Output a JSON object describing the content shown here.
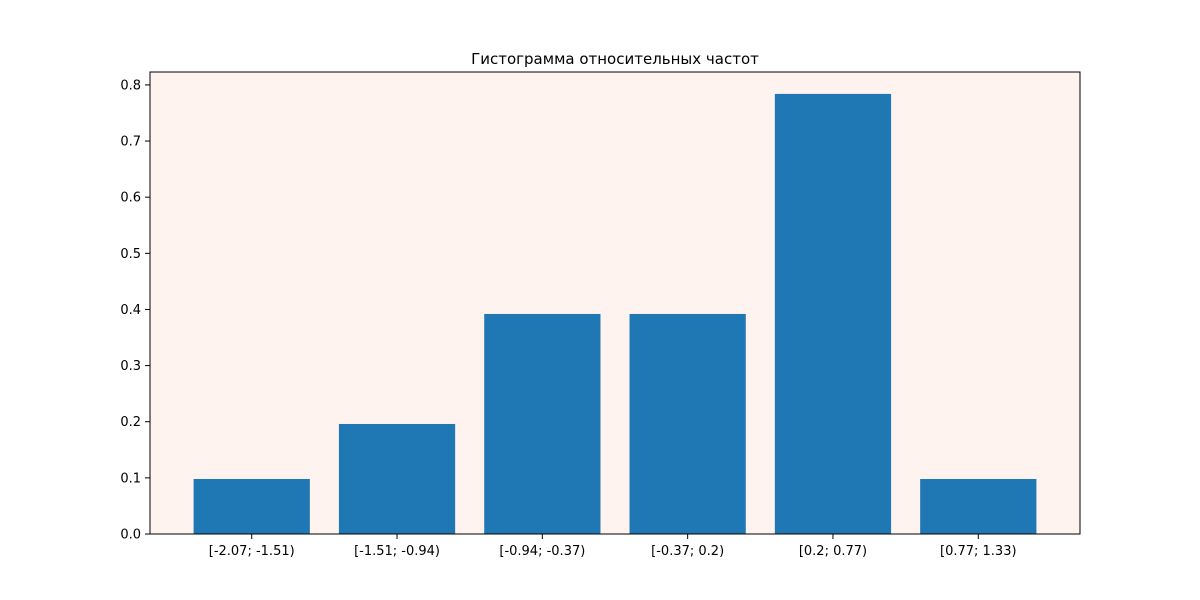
{
  "chart_data": {
    "type": "bar",
    "title": "Гистограмма относительных частот",
    "xlabel": "",
    "ylabel": "",
    "categories": [
      "[-2.07; -1.51)",
      "[-1.51; -0.94)",
      "[-0.94; -0.37)",
      "[-0.37; 0.2)",
      "[0.2; 0.77)",
      "[0.77; 1.33)"
    ],
    "values": [
      0.098,
      0.196,
      0.392,
      0.392,
      0.784,
      0.098
    ],
    "ylim": [
      0,
      0.823
    ],
    "yticks": [
      0.0,
      0.1,
      0.2,
      0.3,
      0.4,
      0.5,
      0.6,
      0.7,
      0.8
    ],
    "ytick_labels": [
      "0.0",
      "0.1",
      "0.2",
      "0.3",
      "0.4",
      "0.5",
      "0.6",
      "0.7",
      "0.8"
    ],
    "grid": false,
    "colors": {
      "bar": "#1f77b4",
      "plot_background": "#fef3ef",
      "axis": "#000000"
    }
  }
}
